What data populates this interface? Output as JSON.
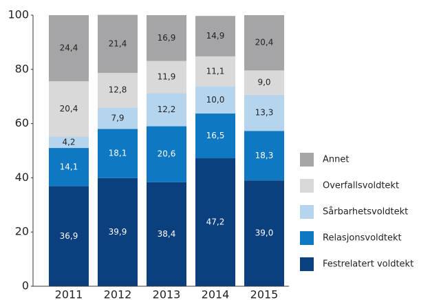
{
  "chart_data": {
    "type": "stacked_bar",
    "categories": [
      "2011",
      "2012",
      "2013",
      "2014",
      "2015"
    ],
    "series": [
      {
        "name": "Festrelatert voldtekt",
        "color": "#0b3f7e",
        "label_color": "#ffffff",
        "values": [
          36.9,
          39.9,
          38.4,
          47.2,
          39.0
        ],
        "value_labels": [
          "36,9",
          "39,9",
          "38,4",
          "47,2",
          "39,0"
        ]
      },
      {
        "name": "Relasjonsvoldtekt",
        "color": "#0f78c2",
        "label_color": "#ffffff",
        "values": [
          14.1,
          18.1,
          20.6,
          16.5,
          18.3
        ],
        "value_labels": [
          "14,1",
          "18,1",
          "20,6",
          "16,5",
          "18,3"
        ]
      },
      {
        "name": "Sårbarhetsvoldtekt",
        "color": "#b5d5ef",
        "label_color": "#222222",
        "values": [
          4.2,
          7.9,
          12.2,
          10.0,
          13.3
        ],
        "value_labels": [
          "4,2",
          "7,9",
          "12,2",
          "10,0",
          "13,3"
        ]
      },
      {
        "name": "Overfallsvoldtekt",
        "color": "#d9d9d9",
        "label_color": "#222222",
        "values": [
          20.4,
          12.8,
          11.9,
          11.1,
          9.0
        ],
        "value_labels": [
          "20,4",
          "12,8",
          "11,9",
          "11,1",
          "9,0"
        ]
      },
      {
        "name": "Annet",
        "color": "#a5a5a7",
        "label_color": "#222222",
        "values": [
          24.4,
          21.4,
          16.9,
          14.9,
          20.4
        ],
        "value_labels": [
          "24,4",
          "21,4",
          "16,9",
          "14,9",
          "20,4"
        ]
      }
    ],
    "ylim": [
      0,
      100
    ],
    "yticks": [
      0,
      20,
      40,
      60,
      80,
      100
    ],
    "grid": false,
    "legend": "right"
  }
}
